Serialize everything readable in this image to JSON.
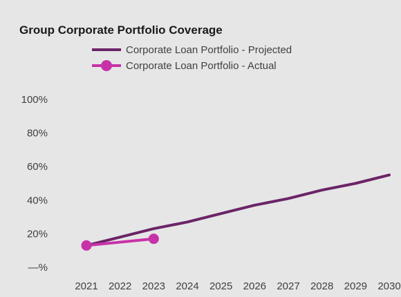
{
  "chart_data": {
    "type": "line",
    "title": "Group Corporate Portfolio Coverage",
    "xlabel": "",
    "ylabel": "",
    "x": [
      2021,
      2022,
      2023,
      2024,
      2025,
      2026,
      2027,
      2028,
      2029,
      2030
    ],
    "x_tick_labels": [
      "2021",
      "2022",
      "2023",
      "2024",
      "2025",
      "2026",
      "2027",
      "2028",
      "2029",
      "2030"
    ],
    "ylim": [
      0,
      100
    ],
    "y_ticks": [
      0,
      20,
      40,
      60,
      80,
      100
    ],
    "y_tick_labels": [
      "—%",
      "20%",
      "40%",
      "60%",
      "80%",
      "100%"
    ],
    "grid": false,
    "legend_position": "top",
    "series": [
      {
        "name": "Corporate Loan Portfolio - Projected",
        "color": "#6b2466",
        "markers": false,
        "x": [
          2021,
          2022,
          2023,
          2024,
          2025,
          2026,
          2027,
          2028,
          2029,
          2030
        ],
        "values": [
          13,
          18,
          23,
          27,
          32,
          37,
          41,
          46,
          50,
          55
        ]
      },
      {
        "name": "Corporate Loan Portfolio - Actual",
        "color": "#c732a8",
        "markers": true,
        "x": [
          2021,
          2023
        ],
        "values": [
          13,
          17
        ]
      }
    ]
  }
}
